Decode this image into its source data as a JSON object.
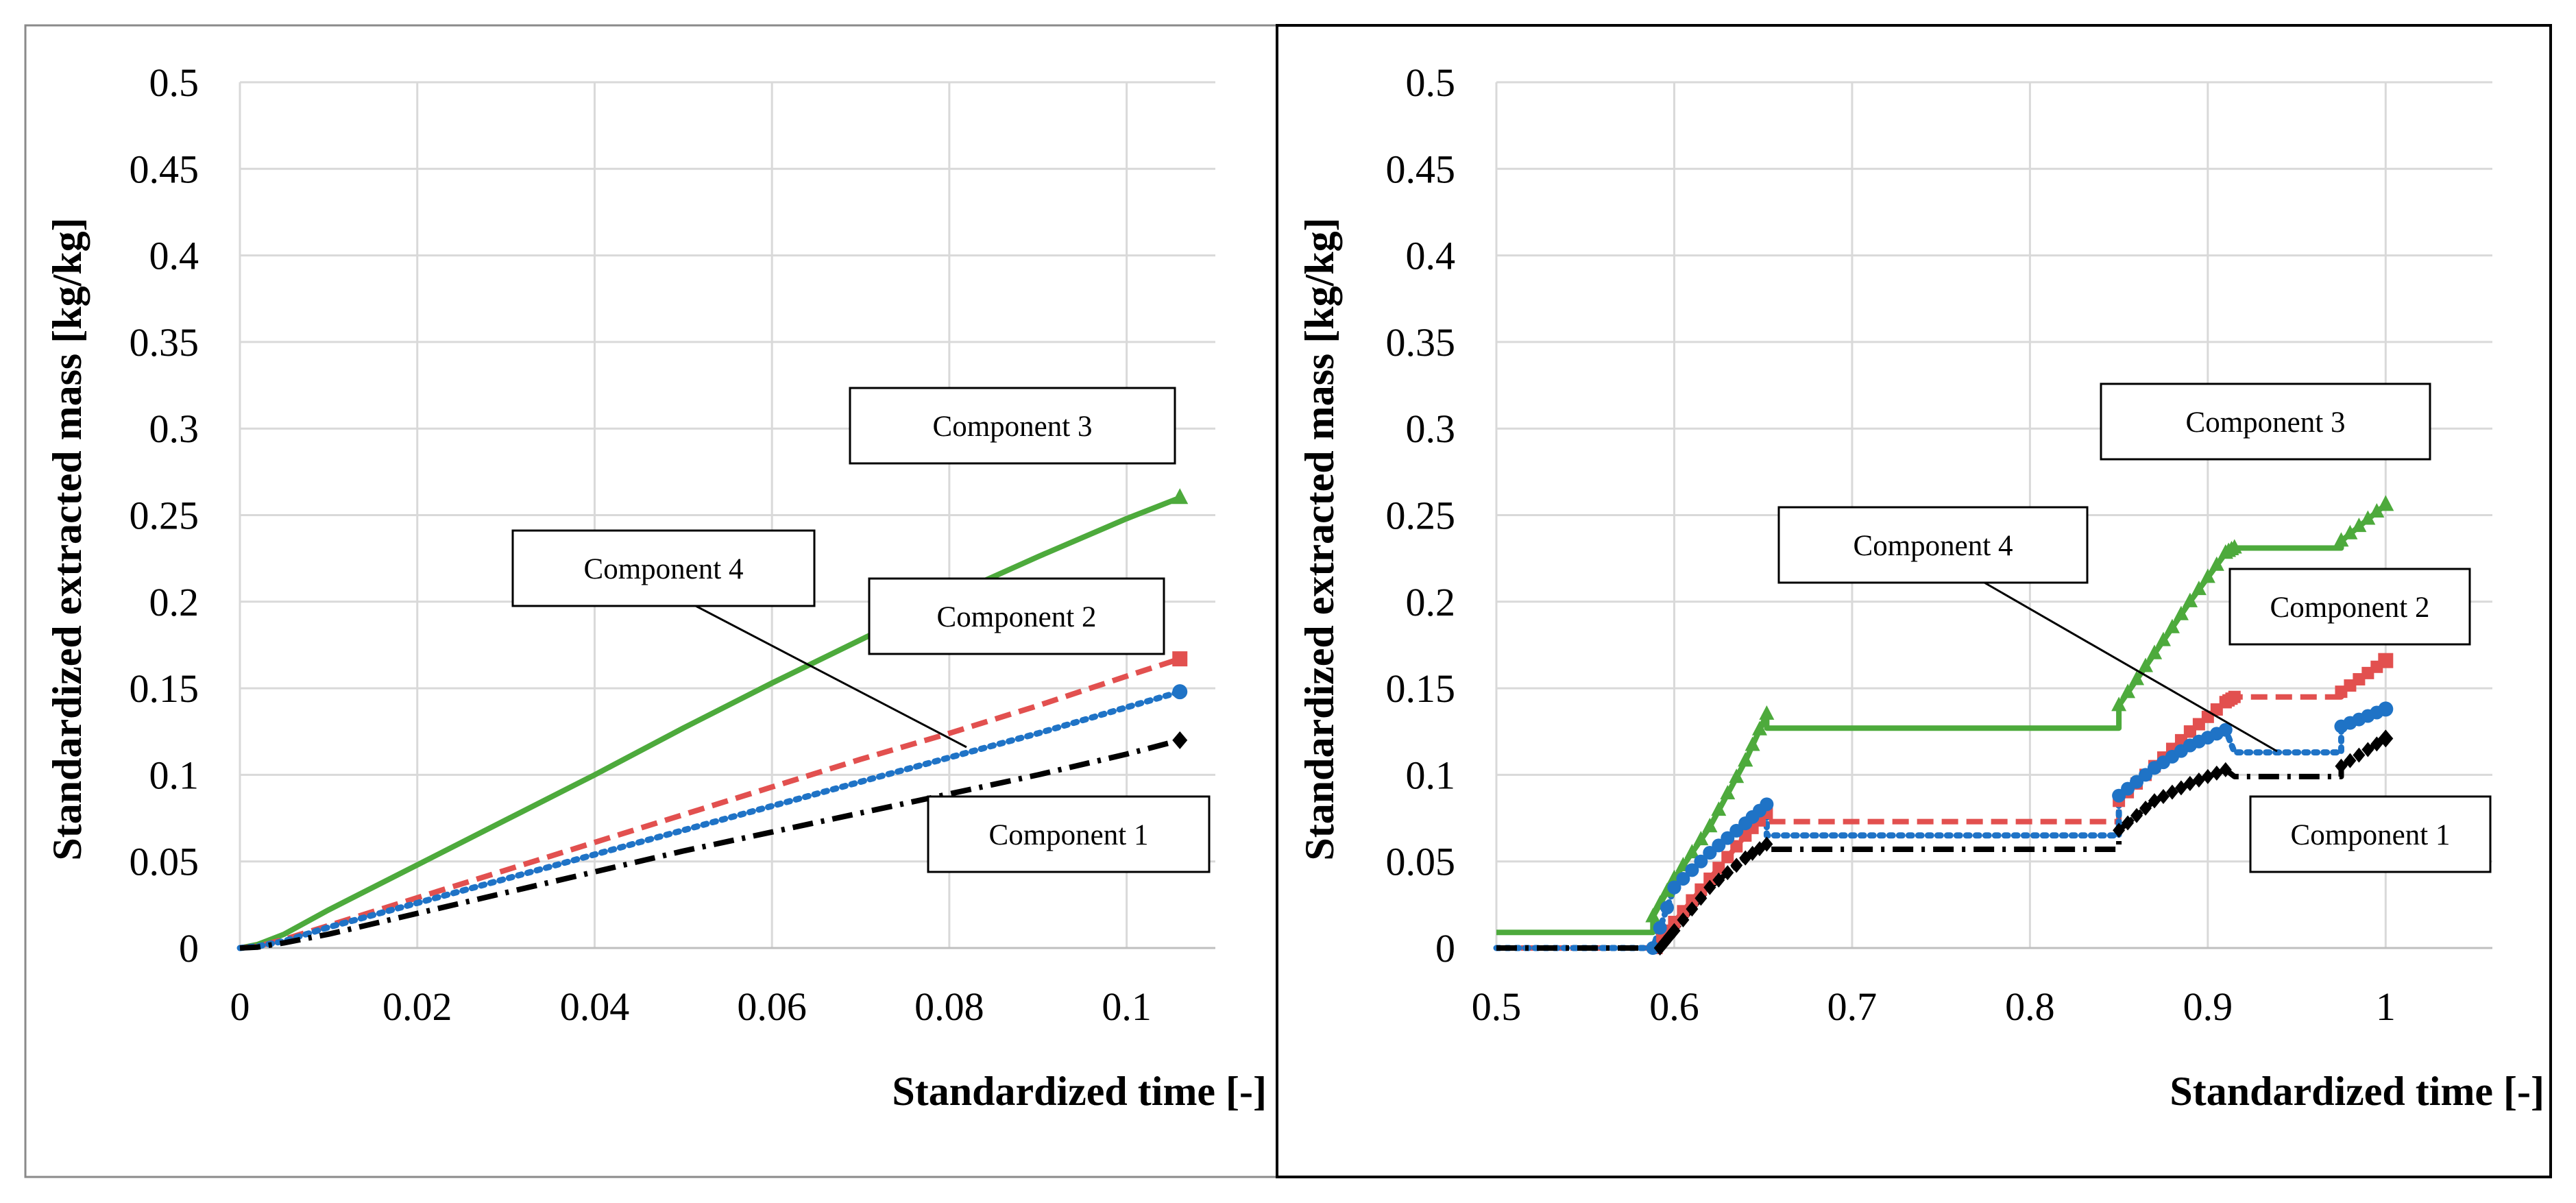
{
  "chart_data": [
    {
      "type": "line",
      "title": "",
      "xlabel": "Standardized time [-]",
      "ylabel": "Standardized extracted mass [kg/kg]",
      "xlim": [
        0,
        0.11
      ],
      "ylim": [
        0,
        0.5
      ],
      "xticks": [
        "0",
        "0.02",
        "0.04",
        "0.06",
        "0.08",
        "0.1"
      ],
      "xtick_values": [
        0,
        0.02,
        0.04,
        0.06,
        0.08,
        0.1
      ],
      "yticks": [
        "0",
        "0.05",
        "0.1",
        "0.15",
        "0.2",
        "0.25",
        "0.3",
        "0.35",
        "0.4",
        "0.45",
        "0.5"
      ],
      "ytick_values": [
        0,
        0.05,
        0.1,
        0.15,
        0.2,
        0.25,
        0.3,
        0.35,
        0.4,
        0.45,
        0.5
      ],
      "grid": true,
      "series": [
        {
          "name": "Component 3",
          "color": "#4daa3c",
          "style": "solid",
          "marker": "triangle",
          "x": [
            0,
            0.002,
            0.005,
            0.01,
            0.02,
            0.03,
            0.04,
            0.05,
            0.06,
            0.07,
            0.08,
            0.09,
            0.1,
            0.106
          ],
          "y": [
            0,
            0.002,
            0.008,
            0.022,
            0.048,
            0.074,
            0.1,
            0.127,
            0.153,
            0.178,
            0.203,
            0.226,
            0.248,
            0.26
          ]
        },
        {
          "name": "Component 2",
          "color": "#e2504f",
          "style": "dashed",
          "marker": "square",
          "x": [
            0,
            0.002,
            0.005,
            0.01,
            0.02,
            0.03,
            0.04,
            0.05,
            0.06,
            0.07,
            0.08,
            0.09,
            0.1,
            0.106
          ],
          "y": [
            0,
            0.001,
            0.005,
            0.013,
            0.029,
            0.045,
            0.061,
            0.077,
            0.093,
            0.109,
            0.124,
            0.14,
            0.157,
            0.167
          ]
        },
        {
          "name": "Component 4",
          "color": "#1f73c6",
          "style": "dotted",
          "marker": "circle",
          "x": [
            0,
            0.002,
            0.005,
            0.01,
            0.02,
            0.03,
            0.04,
            0.05,
            0.06,
            0.07,
            0.08,
            0.09,
            0.1,
            0.106
          ],
          "y": [
            0,
            0.001,
            0.004,
            0.012,
            0.026,
            0.04,
            0.054,
            0.068,
            0.082,
            0.096,
            0.11,
            0.124,
            0.139,
            0.148
          ]
        },
        {
          "name": "Component 1",
          "color": "#000000",
          "style": "dashdot",
          "marker": "diamond",
          "x": [
            0,
            0.002,
            0.005,
            0.01,
            0.02,
            0.03,
            0.04,
            0.05,
            0.06,
            0.07,
            0.08,
            0.09,
            0.1,
            0.106
          ],
          "y": [
            0,
            0.0005,
            0.003,
            0.008,
            0.02,
            0.032,
            0.044,
            0.056,
            0.067,
            0.078,
            0.089,
            0.1,
            0.112,
            0.12
          ]
        }
      ],
      "annotations": [
        {
          "text": "Component 3"
        },
        {
          "text": "Component 4"
        },
        {
          "text": "Component 2"
        },
        {
          "text": "Component 1"
        }
      ]
    },
    {
      "type": "line",
      "title": "",
      "xlabel": "Standardized time [-]",
      "ylabel": "Standardized extracted mass [kg/kg]",
      "xlim": [
        0.5,
        1.06
      ],
      "ylim": [
        0,
        0.5
      ],
      "xticks": [
        "0.5",
        "0.6",
        "0.7",
        "0.8",
        "0.9",
        "1"
      ],
      "xtick_values": [
        0.5,
        0.6,
        0.7,
        0.8,
        0.9,
        1.0
      ],
      "yticks": [
        "0",
        "0.05",
        "0.1",
        "0.15",
        "0.2",
        "0.25",
        "0.3",
        "0.35",
        "0.4",
        "0.45",
        "0.5"
      ],
      "ytick_values": [
        0,
        0.05,
        0.1,
        0.15,
        0.2,
        0.25,
        0.3,
        0.35,
        0.4,
        0.45,
        0.5
      ],
      "grid": true,
      "series": [
        {
          "name": "Component 3",
          "color": "#4daa3c",
          "style": "solid",
          "marker": "triangle",
          "x": [
            0.5,
            0.588,
            0.588,
            0.6,
            0.62,
            0.64,
            0.652,
            0.652,
            0.85,
            0.85,
            0.87,
            0.89,
            0.91,
            0.915,
            0.975,
            0.975,
            1.0
          ],
          "y": [
            0.009,
            0.009,
            0.018,
            0.04,
            0.07,
            0.108,
            0.135,
            0.127,
            0.127,
            0.14,
            0.17,
            0.2,
            0.228,
            0.231,
            0.231,
            0.235,
            0.256
          ]
        },
        {
          "name": "Component 2",
          "color": "#e2504f",
          "style": "dashed",
          "marker": "square",
          "x": [
            0.5,
            0.59,
            0.6,
            0.62,
            0.64,
            0.652,
            0.652,
            0.85,
            0.85,
            0.87,
            0.89,
            0.91,
            0.915,
            0.975,
            0.975,
            1.0
          ],
          "y": [
            0,
            0,
            0.015,
            0.04,
            0.065,
            0.078,
            0.073,
            0.073,
            0.085,
            0.105,
            0.125,
            0.142,
            0.145,
            0.145,
            0.148,
            0.166
          ]
        },
        {
          "name": "Component 4",
          "color": "#1f73c6",
          "style": "dotted",
          "marker": "circle",
          "x": [
            0.5,
            0.588,
            0.6,
            0.62,
            0.64,
            0.652,
            0.652,
            0.85,
            0.85,
            0.87,
            0.89,
            0.91,
            0.915,
            0.975,
            0.975,
            1.0
          ],
          "y": [
            0,
            0,
            0.035,
            0.055,
            0.072,
            0.083,
            0.065,
            0.065,
            0.088,
            0.104,
            0.117,
            0.126,
            0.113,
            0.113,
            0.128,
            0.138
          ]
        },
        {
          "name": "Component 1",
          "color": "#000000",
          "style": "dashdot",
          "marker": "diamond",
          "x": [
            0.5,
            0.592,
            0.6,
            0.62,
            0.64,
            0.652,
            0.652,
            0.85,
            0.85,
            0.87,
            0.89,
            0.91,
            0.915,
            0.975,
            0.975,
            1.0
          ],
          "y": [
            0,
            0,
            0.01,
            0.035,
            0.052,
            0.06,
            0.057,
            0.057,
            0.068,
            0.085,
            0.095,
            0.103,
            0.099,
            0.099,
            0.105,
            0.121
          ]
        }
      ],
      "annotations": [
        {
          "text": "Component 3"
        },
        {
          "text": "Component 4"
        },
        {
          "text": "Component 2"
        },
        {
          "text": "Component 1"
        }
      ]
    }
  ]
}
